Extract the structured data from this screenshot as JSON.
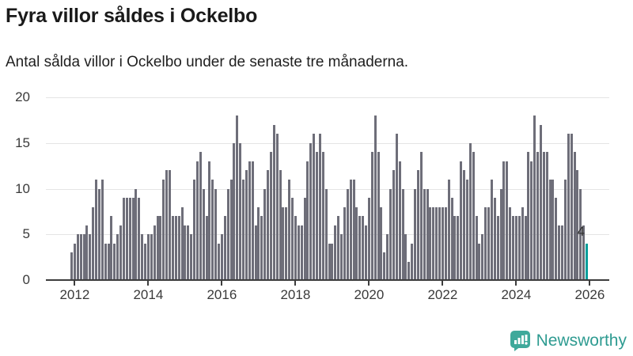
{
  "header": {
    "title": "Fyra villor såldes i Ockelbo",
    "subtitle": "Antal sålda villor i Ockelbo under de senaste tre månaderna."
  },
  "chart_data": {
    "type": "bar",
    "title": "Fyra villor såldes i Ockelbo",
    "subtitle": "Antal sålda villor i Ockelbo under de senaste tre månaderna.",
    "x_unit": "month",
    "start_month": "2011-12",
    "end_month": "2025-12",
    "x_tick_labels": [
      "2012",
      "2014",
      "2016",
      "2018",
      "2020",
      "2022",
      "2024",
      "2026"
    ],
    "y_ticks": [
      0,
      5,
      10,
      15,
      20
    ],
    "ylim": [
      0,
      20
    ],
    "grid": "horizontal",
    "bar_color": "#6e6e79",
    "values": [
      3,
      4,
      5,
      5,
      5,
      6,
      5,
      8,
      11,
      10,
      11,
      4,
      4,
      7,
      4,
      5,
      6,
      9,
      9,
      9,
      9,
      10,
      9,
      5,
      4,
      5,
      5,
      6,
      7,
      7,
      11,
      12,
      12,
      7,
      7,
      7,
      8,
      6,
      6,
      5,
      11,
      13,
      14,
      10,
      7,
      13,
      11,
      10,
      4,
      5,
      7,
      10,
      11,
      15,
      18,
      15,
      11,
      12,
      13,
      13,
      6,
      8,
      7,
      10,
      12,
      14,
      17,
      16,
      12,
      8,
      8,
      11,
      9,
      7,
      6,
      6,
      9,
      13,
      15,
      16,
      14,
      16,
      14,
      10,
      4,
      4,
      6,
      7,
      5,
      8,
      10,
      11,
      11,
      8,
      7,
      7,
      6,
      9,
      14,
      18,
      14,
      8,
      3,
      5,
      10,
      12,
      16,
      13,
      10,
      5,
      2,
      4,
      10,
      12,
      14,
      10,
      10,
      8,
      8,
      8,
      8,
      8,
      8,
      11,
      9,
      7,
      7,
      13,
      12,
      11,
      15,
      14,
      7,
      4,
      5,
      8,
      8,
      11,
      9,
      7,
      10,
      13,
      13,
      8,
      7,
      7,
      7,
      8,
      7,
      14,
      13,
      18,
      14,
      17,
      14,
      14,
      11,
      11,
      9,
      6,
      6,
      11,
      16,
      16,
      14,
      12,
      10,
      6,
      4
    ],
    "highlight": {
      "position": "last",
      "value": 4,
      "label": "4",
      "color": "#009e9b"
    }
  },
  "footer": {
    "brand": "Newsworthy",
    "logo_icon": "bar-chart-speech-bubble-icon",
    "brand_color": "#2e9b91",
    "icon_color": "#3fa99b"
  }
}
